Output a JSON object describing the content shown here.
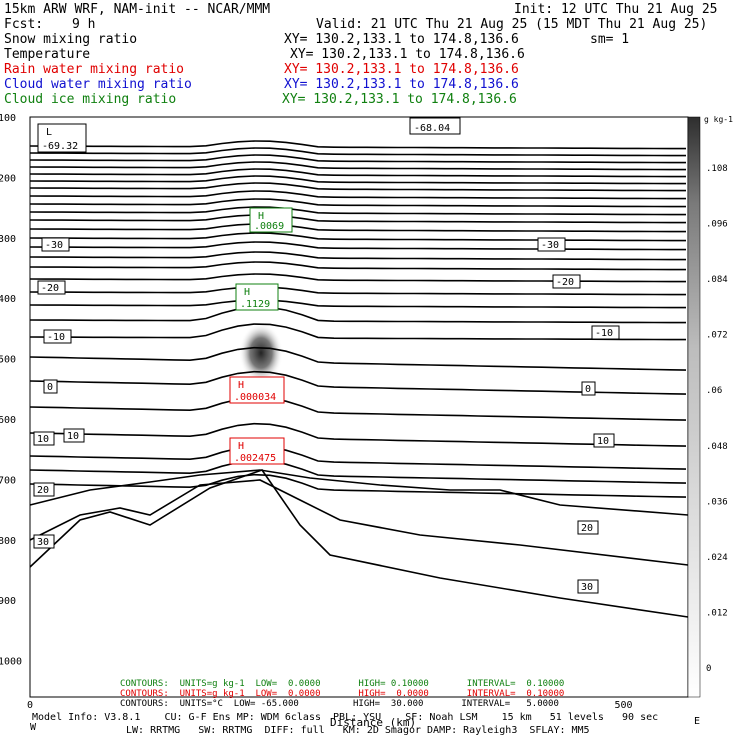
{
  "header": {
    "model": "15km ARW WRF, NAM-init -- NCAR/MMM",
    "init": "Init: 12 UTC Thu 21 Aug 25",
    "fcst_label": "Fcst:",
    "fcst_value": "9 h",
    "valid": "Valid: 21 UTC Thu 21 Aug 25 (15 MDT Thu 21 Aug 25)",
    "fields": [
      {
        "name": "Snow mixing ratio",
        "xy": "XY= 130.2,133.1 to 174.8,136.6",
        "extra": "sm= 1",
        "color": "#000000"
      },
      {
        "name": "Temperature",
        "xy": "XY= 130.2,133.1 to 174.8,136.6",
        "extra": "",
        "color": "#000000"
      },
      {
        "name": "Rain water mixing ratio",
        "xy": "XY= 130.2,133.1 to 174.8,136.6",
        "extra": "",
        "color": "#e00000"
      },
      {
        "name": "Cloud water mixing ratio",
        "xy": "XY= 130.2,133.1 to 174.8,136.6",
        "extra": "",
        "color": "#1010d0"
      },
      {
        "name": "Cloud ice mixing ratio",
        "xy": "XY= 130.2,133.1 to 174.8,136.6",
        "extra": "",
        "color": "#108010"
      }
    ]
  },
  "chart_data": {
    "type": "contour-cross-section",
    "x_axis": {
      "label": "Distance (km)",
      "ticks": [
        0,
        500
      ],
      "range": [
        0,
        560
      ]
    },
    "y_axis": {
      "ticks": [
        100,
        200,
        300,
        400,
        500,
        600,
        700,
        800,
        900,
        1000
      ],
      "range": [
        100,
        1000
      ]
    },
    "colorbar": {
      "unit": "g kg-1",
      "ticks": [
        "0",
        ".012",
        ".024",
        ".036",
        ".048",
        ".06",
        ".072",
        ".084",
        ".096",
        ".108"
      ]
    },
    "temperature_contour_labels": [
      "-30",
      "-30",
      "-20",
      "-20",
      "-10",
      "-10",
      "0",
      "0",
      "10",
      "10",
      "10",
      "20",
      "20",
      "30",
      "30"
    ],
    "extrema": [
      {
        "kind": "L",
        "value": "-69.32",
        "field": "Temperature"
      },
      {
        "kind": "",
        "value": "-68.04",
        "field": "Temperature"
      },
      {
        "kind": "H",
        "value": ".0069",
        "field": "Cloud ice mixing ratio"
      },
      {
        "kind": "H",
        "value": ".1129",
        "field": "Cloud ice mixing ratio"
      },
      {
        "kind": "H",
        "value": ".000034",
        "field": "Rain water mixing ratio"
      },
      {
        "kind": "H",
        "value": ".002475",
        "field": "Rain water mixing ratio"
      }
    ],
    "contours_info": [
      {
        "text": "CONTOURS:  UNITS=g kg-1  LOW=  0.0000       HIGH= 0.10000       INTERVAL=  0.10000",
        "color": "#108010"
      },
      {
        "text": "CONTOURS:  UNITS=g kg-1  LOW=  0.0000       HIGH=  0.0000       INTERVAL=  0.10000",
        "color": "#e00000"
      },
      {
        "text": "CONTOURS:  UNITS=°C  LOW= -65.000          HIGH=  30.000       INTERVAL=   5.0000",
        "color": "#000000"
      }
    ]
  },
  "footer": {
    "line1": "Model Info: V3.8.1    CU: G-F Ens MP: WDM 6class  PBL: YSU    SF: Noah LSM    15 km   51 levels   90 sec",
    "line2": "LW: RRTMG   SW: RRTMG  DIFF: full   KM: 2D Smagor DAMP: Rayleigh3  SFLAY: MM5",
    "corner_left": "W",
    "corner_right": "E"
  }
}
